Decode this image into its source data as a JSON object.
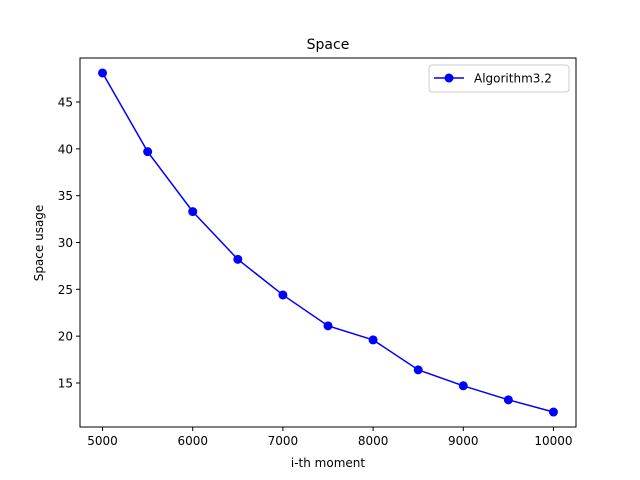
{
  "chart_data": {
    "type": "line",
    "title": "Space",
    "xlabel": "i-th moment",
    "ylabel": "Space usage",
    "xlim": [
      4750,
      10250
    ],
    "ylim": [
      10.3,
      49.7
    ],
    "xticks": [
      5000,
      6000,
      7000,
      8000,
      9000,
      10000
    ],
    "yticks": [
      15,
      20,
      25,
      30,
      35,
      40,
      45
    ],
    "grid": false,
    "legend_position": "top-right",
    "series": [
      {
        "name": "Algorithm3.2",
        "color": "#0000ff",
        "marker": "circle",
        "x": [
          5000,
          5500,
          6000,
          6500,
          7000,
          7500,
          8000,
          8500,
          9000,
          9500,
          10000
        ],
        "y": [
          48.1,
          39.7,
          33.3,
          28.2,
          24.4,
          21.1,
          19.6,
          16.4,
          14.7,
          13.2,
          11.9
        ]
      }
    ]
  }
}
